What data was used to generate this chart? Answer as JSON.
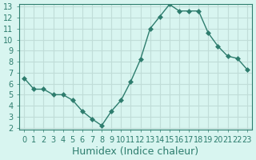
{
  "x": [
    0,
    1,
    2,
    3,
    4,
    5,
    6,
    7,
    8,
    9,
    10,
    11,
    12,
    13,
    14,
    15,
    16,
    17,
    18,
    19,
    20,
    21,
    22,
    23
  ],
  "y": [
    6.5,
    5.5,
    5.5,
    5.0,
    5.0,
    4.5,
    3.5,
    2.8,
    2.2,
    3.5,
    4.5,
    6.2,
    8.2,
    11.0,
    12.1,
    13.2,
    12.6,
    12.6,
    12.6,
    10.6,
    9.4,
    8.5,
    8.3,
    7.3
  ],
  "line_color": "#2e7d6e",
  "marker": "D",
  "marker_size": 3,
  "bg_color": "#d8f5f0",
  "grid_color": "#c0ddd8",
  "xlabel": "Humidex (Indice chaleur)",
  "ylim": [
    2,
    13
  ],
  "xlim": [
    0,
    23
  ],
  "yticks": [
    2,
    3,
    4,
    5,
    6,
    7,
    8,
    9,
    10,
    11,
    12,
    13
  ],
  "xticks": [
    0,
    1,
    2,
    3,
    4,
    5,
    6,
    7,
    8,
    9,
    10,
    11,
    12,
    13,
    14,
    15,
    16,
    17,
    18,
    19,
    20,
    21,
    22,
    23
  ],
  "tick_label_size": 7,
  "xlabel_size": 9,
  "spine_color": "#2e7d6e"
}
